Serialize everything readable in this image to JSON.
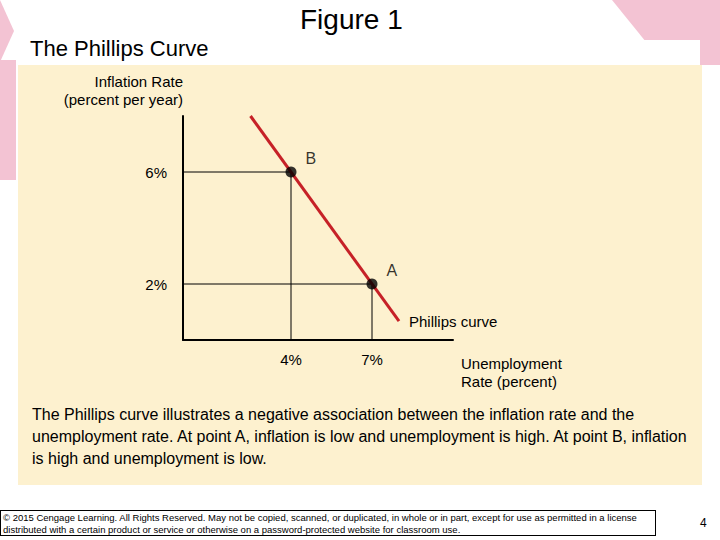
{
  "slide": {
    "heading": "The Phillips Curve",
    "figure_label": "Figure 1",
    "caption": "The Phillips curve illustrates a negative association between the inflation rate and the unemployment rate. At point A, inflation is low and unemployment is high. At point B, inflation is high and unemployment is low.",
    "footer": "© 2015 Cengage Learning. All Rights Reserved. May not be copied, scanned, or duplicated, in whole or in part, except for use as permitted in a license distributed with a certain product or service or otherwise on a password-protected website for classroom use.",
    "page_number": 4
  },
  "chart_data": {
    "type": "line",
    "y_label": "Inflation Rate\n(percent per year)",
    "x_label": "Unemployment\nRate (percent)",
    "series": [
      {
        "name": "Phillips curve",
        "color": "#c62127",
        "x": [
          2.5,
          8
        ],
        "values": [
          8,
          0.67
        ]
      }
    ],
    "points": [
      {
        "label": "B",
        "x": 4,
        "y": 6
      },
      {
        "label": "A",
        "x": 7,
        "y": 2
      }
    ],
    "xlim": [
      0,
      10
    ],
    "ylim": [
      0,
      8
    ],
    "xticks": [
      {
        "value": 4,
        "label": "4%"
      },
      {
        "value": 7,
        "label": "7%"
      }
    ],
    "yticks": [
      {
        "value": 2,
        "label": "2%"
      },
      {
        "value": 6,
        "label": "6%"
      }
    ],
    "grid": false
  }
}
